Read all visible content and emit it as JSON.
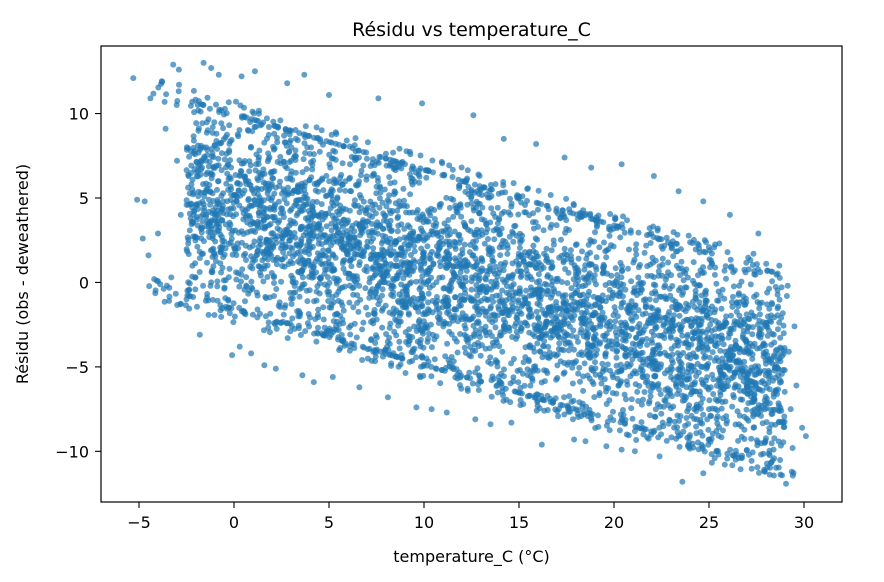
{
  "chart_data": {
    "type": "scatter",
    "title": "Résidu vs temperature_C",
    "xlabel": "temperature_C (°C)",
    "ylabel": "Résidu (obs - deweathered)",
    "xlim": [
      -7,
      32
    ],
    "ylim": [
      -13,
      14
    ],
    "xticks": [
      -5,
      0,
      5,
      10,
      15,
      20,
      25,
      30
    ],
    "yticks": [
      -10,
      -5,
      0,
      5,
      10
    ],
    "xtick_labels": [
      "−5",
      "0",
      "5",
      "10",
      "15",
      "20",
      "25",
      "30"
    ],
    "ytick_labels": [
      "−10",
      "−5",
      "0",
      "5",
      "10"
    ],
    "grid": false,
    "legend": "none",
    "point_color": "#1f77b4",
    "series": [
      {
        "description_of_trend": "dense negative linear cloud",
        "core_band": {
          "x_range": [
            -2.5,
            29
          ],
          "center_at_x0": 4.2,
          "slope": -0.33,
          "half_width": 5.5
        },
        "outliers": [
          [
            -5.3,
            12.1
          ],
          [
            -5.1,
            4.9
          ],
          [
            -4.7,
            4.8
          ],
          [
            -4.8,
            2.6
          ],
          [
            -4.5,
            1.6
          ],
          [
            -4.2,
            0.2
          ],
          [
            -4.0,
            2.9
          ],
          [
            -3.6,
            9.1
          ],
          [
            -3.2,
            12.9
          ],
          [
            -2.9,
            12.6
          ],
          [
            -3.0,
            7.2
          ],
          [
            -2.8,
            4.0
          ],
          [
            -3.3,
            0.3
          ],
          [
            -2.5,
            -1.0
          ],
          [
            -1.6,
            13.0
          ],
          [
            -1.2,
            12.7
          ],
          [
            -0.8,
            12.3
          ],
          [
            0.4,
            12.2
          ],
          [
            1.1,
            12.5
          ],
          [
            -1.8,
            -3.1
          ],
          [
            -0.1,
            -4.3
          ],
          [
            0.3,
            -3.8
          ],
          [
            0.9,
            -4.2
          ],
          [
            1.6,
            -4.9
          ],
          [
            2.2,
            -5.1
          ],
          [
            2.8,
            11.8
          ],
          [
            3.7,
            12.3
          ],
          [
            5.0,
            11.1
          ],
          [
            7.6,
            10.9
          ],
          [
            9.9,
            10.6
          ],
          [
            12.6,
            9.9
          ],
          [
            14.2,
            8.5
          ],
          [
            15.9,
            8.2
          ],
          [
            17.4,
            7.4
          ],
          [
            18.8,
            6.8
          ],
          [
            20.4,
            7.0
          ],
          [
            22.1,
            6.3
          ],
          [
            23.4,
            5.4
          ],
          [
            24.7,
            4.8
          ],
          [
            26.1,
            4.0
          ],
          [
            27.6,
            2.9
          ],
          [
            28.7,
            1.0
          ],
          [
            29.1,
            -0.8
          ],
          [
            29.5,
            -2.6
          ],
          [
            29.2,
            -4.1
          ],
          [
            29.6,
            -6.1
          ],
          [
            29.3,
            -7.5
          ],
          [
            29.9,
            -8.6
          ],
          [
            30.1,
            -9.1
          ],
          [
            29.4,
            -9.8
          ],
          [
            28.4,
            -9.9
          ],
          [
            27.1,
            -10.2
          ],
          [
            26.4,
            -10.5
          ],
          [
            25.3,
            -10.4
          ],
          [
            24.7,
            -11.3
          ],
          [
            23.6,
            -11.8
          ],
          [
            22.4,
            -10.3
          ],
          [
            21.1,
            -10.0
          ],
          [
            19.6,
            -9.7
          ],
          [
            17.9,
            -9.3
          ],
          [
            16.2,
            -9.6
          ],
          [
            14.6,
            -8.3
          ],
          [
            12.7,
            -8.1
          ],
          [
            11.2,
            -7.7
          ],
          [
            9.6,
            -7.4
          ],
          [
            8.1,
            -6.8
          ],
          [
            6.6,
            -6.2
          ],
          [
            5.2,
            -5.6
          ],
          [
            3.6,
            -5.5
          ],
          [
            4.2,
            -5.9
          ],
          [
            10.4,
            -7.5
          ],
          [
            13.5,
            -8.4
          ],
          [
            18.5,
            -9.4
          ],
          [
            20.4,
            -9.9
          ]
        ]
      }
    ]
  }
}
